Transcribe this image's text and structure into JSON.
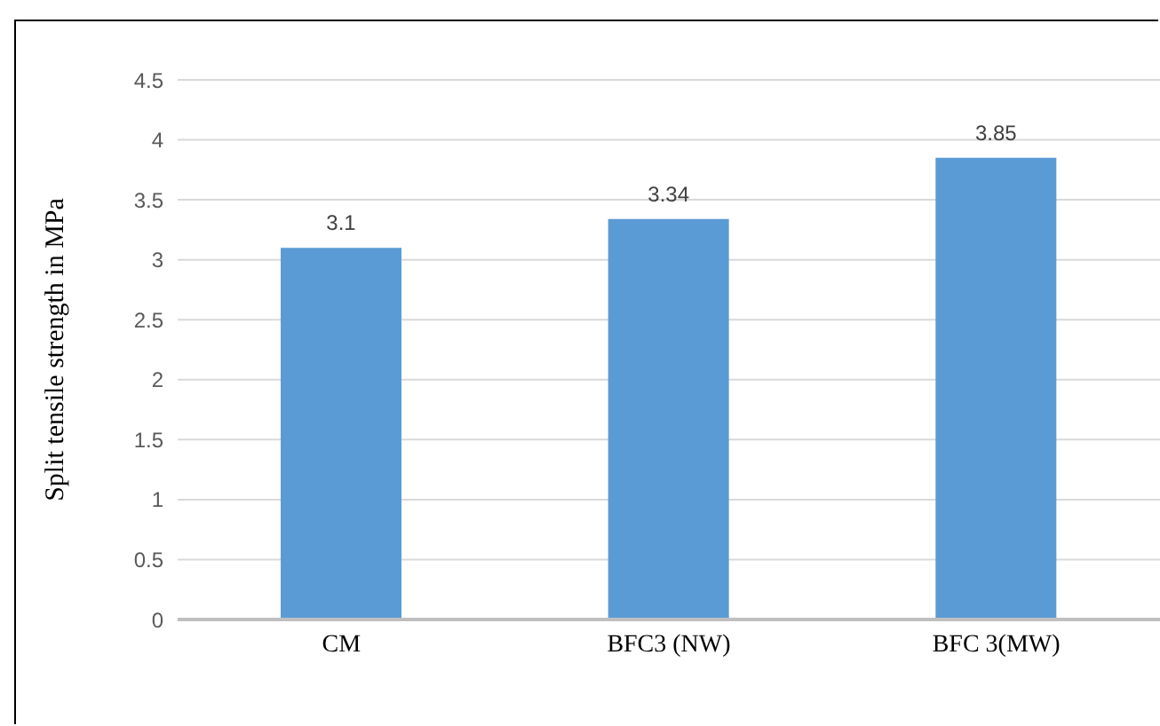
{
  "chart_data": {
    "type": "bar",
    "ylabel": "Split tensile strength in MPa",
    "categories": [
      "CM",
      "BFC3 (NW)",
      "BFC 3(MW)"
    ],
    "values": [
      3.1,
      3.34,
      3.85
    ],
    "color": "#5b9bd5",
    "ylim": [
      0,
      4.5
    ],
    "yticks": [
      0,
      0.5,
      1,
      1.5,
      2,
      2.5,
      3,
      3.5,
      4,
      4.5
    ],
    "grid": "y",
    "data_labels": true
  }
}
